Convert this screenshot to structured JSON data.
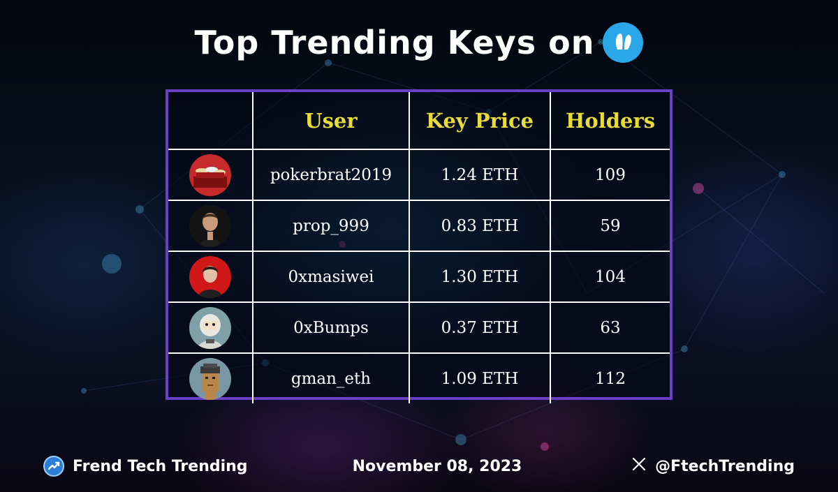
{
  "header": {
    "title": "Top Trending Keys on",
    "logo_icon": "friend-tech-logo-icon",
    "accent_color": "#2aa7e8"
  },
  "table": {
    "columns": [
      "",
      "User",
      "Key Price",
      "Holders"
    ],
    "header_color": "#e7dc3a",
    "border_color": "#6b3fc8",
    "rows": [
      {
        "avatar": "poker-chips-avatar",
        "user": "pokerbrat2019",
        "key_price": "1.24 ETH",
        "holders": "109"
      },
      {
        "avatar": "man-portrait-avatar",
        "user": "prop_999",
        "key_price": "0.83 ETH",
        "holders": "59"
      },
      {
        "avatar": "red-background-portrait-avatar",
        "user": "0xmasiwei",
        "key_price": "1.30 ETH",
        "holders": "104"
      },
      {
        "avatar": "astronaut-figure-avatar",
        "user": "0xBumps",
        "key_price": "0.37 ETH",
        "holders": "63"
      },
      {
        "avatar": "pixel-punk-avatar",
        "user": "gman_eth",
        "key_price": "1.09 ETH",
        "holders": "112"
      }
    ]
  },
  "footer": {
    "brand": "Frend Tech Trending",
    "date": "November 08, 2023",
    "handle": "@FtechTrending",
    "handle_icon": "x-logo-icon"
  }
}
